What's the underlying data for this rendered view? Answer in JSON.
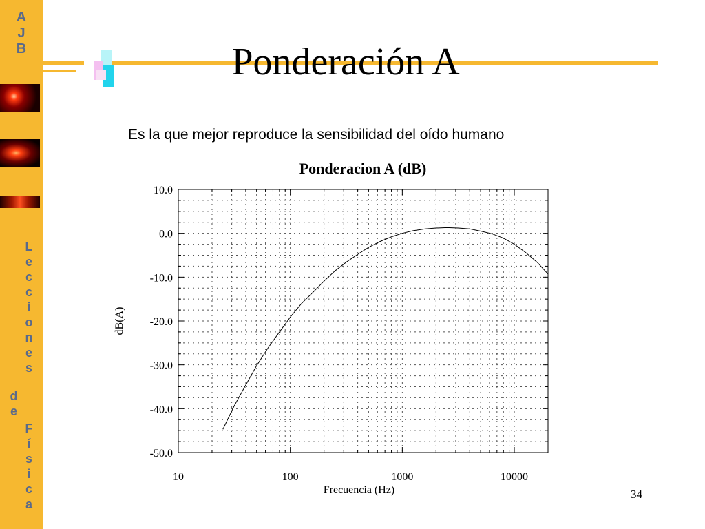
{
  "sidebar": {
    "letters": [
      "A",
      "J",
      "B"
    ],
    "vertical_top": [
      "L",
      "e",
      "c",
      "c",
      "i",
      "o",
      "n",
      "e",
      "s"
    ],
    "vertical_de": [
      "d",
      "e"
    ],
    "vertical_bottom": [
      "F",
      "í",
      "s",
      "i",
      "c",
      "a"
    ]
  },
  "slide": {
    "title": "Ponderación A",
    "subtitle": "Es la que mejor reproduce la sensibilidad del oído humano",
    "page_number": "34"
  },
  "chart_data": {
    "type": "line",
    "title": "Ponderacion A (dB)",
    "xlabel": "Frecuencia (Hz)",
    "ylabel": "dB(A)",
    "x_scale": "log",
    "xlim": [
      10,
      20000
    ],
    "ylim": [
      -50,
      10
    ],
    "x_ticks": [
      "10",
      "100",
      "1000",
      "10000"
    ],
    "y_ticks": [
      "10.0",
      "0.0",
      "-10.0",
      "-20.0",
      "-30.0",
      "-40.0",
      "-50.0"
    ],
    "grid": "dotted",
    "series": [
      {
        "x": [
          25,
          31.5,
          40,
          50,
          63,
          80,
          100,
          125,
          160,
          200,
          250,
          315,
          400,
          500,
          630,
          800,
          1000,
          1250,
          1600,
          2000,
          2500,
          3150,
          4000,
          5000,
          6300,
          8000,
          10000,
          12500,
          16000,
          20000
        ],
        "y": [
          -44.7,
          -39.4,
          -34.6,
          -30.2,
          -26.2,
          -22.5,
          -19.1,
          -16.1,
          -13.4,
          -10.9,
          -8.6,
          -6.6,
          -4.8,
          -3.2,
          -1.9,
          -0.8,
          0.0,
          0.6,
          1.0,
          1.2,
          1.3,
          1.2,
          1.0,
          0.5,
          -0.1,
          -1.1,
          -2.5,
          -4.3,
          -6.6,
          -9.3
        ]
      }
    ]
  }
}
